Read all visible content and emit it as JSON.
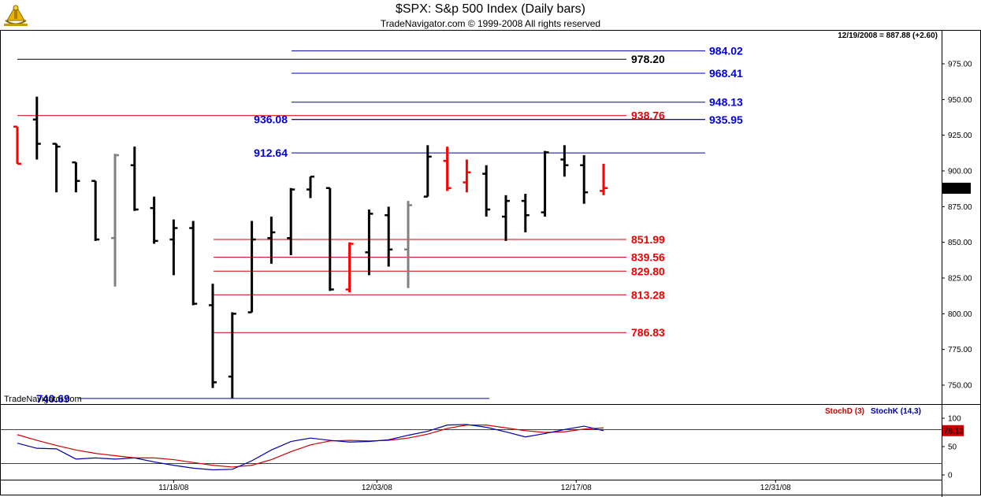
{
  "header": {
    "title": "$SPX:  S&p 500 Index  (Daily bars)",
    "subtitle": "TradeNavigator.com © 1999-2008 All rights reserved",
    "last_price_info": "12/19/2008 = 887.88 (+2.60)",
    "watermark": "TradeNavigator.com",
    "logo_icon": "sextant-logo-icon"
  },
  "colors": {
    "up_bar": "#000000",
    "down_bar": "#ff0000",
    "inside_bar": "#808080",
    "close_tick_up": "#00cc00",
    "blue_line": "#0000aa",
    "red_line": "#cc0000",
    "black_line": "#000000",
    "stoch_d": "#cc0000",
    "stoch_k": "#0000aa"
  },
  "chart_data": [
    {
      "type": "ohlc",
      "title": "$SPX:  S&p 500 Index  (Daily bars)",
      "ylim": [
        735,
        1000
      ],
      "yticks": [
        750,
        775,
        800,
        825,
        850,
        875,
        900,
        925,
        950,
        975
      ],
      "ytick_labels": [
        "750.00",
        "775.00",
        "800.00",
        "825.00",
        "850.00",
        "875.00",
        "900.00",
        "925.00",
        "950.00",
        "975.00"
      ],
      "xtick_labels": [
        "11/18/08",
        "12/03/08",
        "12/17/08",
        "12/31/08"
      ],
      "last_value_label": "887.88",
      "bars": [
        {
          "date": "11/06",
          "open": 931,
          "high": 931,
          "low": 905,
          "close": 905,
          "color": "red"
        },
        {
          "date": "11/07",
          "open": 936,
          "high": 952,
          "low": 908,
          "close": 919,
          "color": "black"
        },
        {
          "date": "11/10",
          "open": 919,
          "high": 919,
          "low": 885,
          "close": 917,
          "color": "black"
        },
        {
          "date": "11/11",
          "open": 906,
          "high": 906,
          "low": 885,
          "close": 893,
          "color": "black"
        },
        {
          "date": "11/12",
          "open": 893,
          "high": 893,
          "low": 851,
          "close": 852,
          "color": "black"
        },
        {
          "date": "11/13",
          "open": 853,
          "high": 912,
          "low": 819,
          "close": 911,
          "color": "gray"
        },
        {
          "date": "11/14",
          "open": 904,
          "high": 917,
          "low": 872,
          "close": 873,
          "color": "black"
        },
        {
          "date": "11/17",
          "open": 874,
          "high": 882,
          "low": 849,
          "close": 851,
          "color": "black"
        },
        {
          "date": "11/18",
          "open": 852,
          "high": 866,
          "low": 827,
          "close": 860,
          "color": "black"
        },
        {
          "date": "11/19",
          "open": 860,
          "high": 865,
          "low": 806,
          "close": 807,
          "color": "black"
        },
        {
          "date": "11/20",
          "open": 806,
          "high": 821,
          "low": 748,
          "close": 752,
          "color": "black"
        },
        {
          "date": "11/21",
          "open": 756,
          "high": 801,
          "low": 741,
          "close": 800,
          "color": "black"
        },
        {
          "date": "11/24",
          "open": 801,
          "high": 865,
          "low": 801,
          "close": 852,
          "color": "black"
        },
        {
          "date": "11/25",
          "open": 853,
          "high": 868,
          "low": 835,
          "close": 857,
          "color": "black"
        },
        {
          "date": "11/26",
          "open": 853,
          "high": 888,
          "low": 841,
          "close": 887,
          "color": "black"
        },
        {
          "date": "11/28",
          "open": 887,
          "high": 896,
          "low": 881,
          "close": 896,
          "color": "black"
        },
        {
          "date": "12/01",
          "open": 888,
          "high": 888,
          "low": 816,
          "close": 817,
          "color": "black"
        },
        {
          "date": "12/02",
          "open": 817,
          "high": 850,
          "low": 815,
          "close": 849,
          "color": "red"
        },
        {
          "date": "12/03",
          "open": 843,
          "high": 873,
          "low": 827,
          "close": 870,
          "color": "black"
        },
        {
          "date": "12/04",
          "open": 869,
          "high": 875,
          "low": 833,
          "close": 845,
          "color": "black"
        },
        {
          "date": "12/05",
          "open": 845,
          "high": 879,
          "low": 818,
          "close": 876,
          "color": "gray"
        },
        {
          "date": "12/08",
          "open": 882,
          "high": 918,
          "low": 882,
          "close": 910,
          "color": "black"
        },
        {
          "date": "12/09",
          "open": 907,
          "high": 917,
          "low": 886,
          "close": 888,
          "color": "red"
        },
        {
          "date": "12/10",
          "open": 892,
          "high": 908,
          "low": 885,
          "close": 899,
          "color": "red"
        },
        {
          "date": "12/11",
          "open": 898,
          "high": 904,
          "low": 868,
          "close": 873,
          "color": "black"
        },
        {
          "date": "12/12",
          "open": 868,
          "high": 883,
          "low": 851,
          "close": 879,
          "color": "black"
        },
        {
          "date": "12/15",
          "open": 879,
          "high": 884,
          "low": 857,
          "close": 869,
          "color": "black"
        },
        {
          "date": "12/16",
          "open": 871,
          "high": 914,
          "low": 868,
          "close": 913,
          "color": "black"
        },
        {
          "date": "12/17",
          "open": 908,
          "high": 918,
          "low": 896,
          "close": 904,
          "color": "black"
        },
        {
          "date": "12/18",
          "open": 904,
          "high": 911,
          "low": 877,
          "close": 885,
          "color": "black"
        },
        {
          "date": "12/19",
          "open": 886,
          "high": 905,
          "low": 883,
          "close": 888,
          "color": "red"
        }
      ],
      "levels": [
        {
          "value": 984.02,
          "label": "984.02",
          "color": "blue",
          "from": "12/01",
          "to": "12/31",
          "label_side": "right"
        },
        {
          "value": 978.2,
          "label": "978.20",
          "color": "black",
          "from": "11/06",
          "to": "12/19",
          "label_side": "right"
        },
        {
          "value": 968.41,
          "label": "968.41",
          "color": "blue",
          "from": "12/01",
          "to": "12/31",
          "label_side": "right"
        },
        {
          "value": 948.13,
          "label": "948.13",
          "color": "blue",
          "from": "12/01",
          "to": "12/31",
          "label_side": "right"
        },
        {
          "value": 938.76,
          "label": "938.76",
          "color": "red",
          "from": "11/06",
          "to": "12/19",
          "label_side": "right"
        },
        {
          "value": 936.08,
          "label": "936.08",
          "color": "blue",
          "from": "12/01",
          "to": "12/31",
          "label_side": "left"
        },
        {
          "value": 935.95,
          "label": "935.95",
          "color": "blue",
          "from": "12/01",
          "to": "12/31",
          "label_side": "right"
        },
        {
          "value": 912.64,
          "label": "912.64",
          "color": "blue",
          "from": "12/01",
          "to": "12/31",
          "label_side": "left"
        },
        {
          "value": 851.99,
          "label": "851.99",
          "color": "red",
          "from": "11/21",
          "to": "12/19",
          "label_side": "right"
        },
        {
          "value": 839.56,
          "label": "839.56",
          "color": "red",
          "from": "11/21",
          "to": "12/19",
          "label_side": "right"
        },
        {
          "value": 829.8,
          "label": "829.80",
          "color": "red",
          "from": "11/21",
          "to": "12/19",
          "label_side": "right"
        },
        {
          "value": 813.28,
          "label": "813.28",
          "color": "red",
          "from": "11/21",
          "to": "12/19",
          "label_side": "right"
        },
        {
          "value": 786.83,
          "label": "786.83",
          "color": "red",
          "from": "11/21",
          "to": "12/19",
          "label_side": "right"
        },
        {
          "value": 740.69,
          "label": "740.69",
          "color": "blue",
          "from": "11/07",
          "to": "12/12",
          "label_side": "left"
        }
      ]
    },
    {
      "type": "line",
      "ylim": [
        -5,
        115
      ],
      "yticks": [
        0,
        50,
        100
      ],
      "ytick_labels": [
        "0",
        "50",
        "100"
      ],
      "reference_lines": [
        20,
        80
      ],
      "last_value_label": "78.13",
      "series": [
        {
          "name": "StochD (3)",
          "values": [
            71,
            61,
            52,
            44,
            38,
            34,
            30,
            30,
            27,
            22,
            17,
            14,
            17,
            27,
            41,
            53,
            60,
            61,
            60,
            61,
            65,
            72,
            82,
            88,
            88,
            83,
            78,
            75,
            76,
            81,
            83
          ]
        },
        {
          "name": "StochK (14,3)",
          "values": [
            56,
            47,
            46,
            28,
            30,
            28,
            30,
            23,
            17,
            12,
            9,
            10,
            25,
            44,
            59,
            65,
            61,
            58,
            59,
            62,
            70,
            77,
            88,
            89,
            84,
            76,
            67,
            73,
            80,
            86,
            78
          ]
        }
      ]
    }
  ]
}
